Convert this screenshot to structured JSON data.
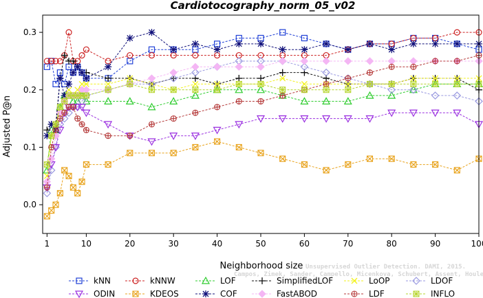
{
  "chart_data": {
    "type": "line",
    "title": "Cardiotocography_norm_05_v02",
    "xlabel": "Neighborhood size",
    "ylabel": "Adjusted P@n",
    "xlim": [
      0,
      100
    ],
    "ylim": [
      -0.05,
      0.33
    ],
    "xticks": [
      1,
      10,
      20,
      30,
      40,
      50,
      60,
      70,
      80,
      90,
      100
    ],
    "yticks": [
      0.0,
      0.1,
      0.2,
      0.3
    ],
    "ytick_labels": [
      "0.0",
      "0.1",
      "0.2",
      "0.3"
    ],
    "grid": false,
    "legend_position": "bottom",
    "x": [
      1,
      2,
      3,
      4,
      5,
      6,
      7,
      8,
      9,
      10,
      15,
      20,
      25,
      30,
      35,
      40,
      45,
      50,
      55,
      60,
      65,
      70,
      75,
      80,
      85,
      90,
      95,
      100
    ],
    "series": [
      {
        "name": "kNN",
        "color": "#1f3fd6",
        "marker": "square",
        "values": [
          0.24,
          0.25,
          0.21,
          0.23,
          0.21,
          0.24,
          0.23,
          0.24,
          0.23,
          0.22,
          0.22,
          0.25,
          0.27,
          0.27,
          0.27,
          0.28,
          0.29,
          0.29,
          0.3,
          0.29,
          0.28,
          0.27,
          0.28,
          0.28,
          0.29,
          0.29,
          0.28,
          0.27
        ]
      },
      {
        "name": "kNNW",
        "color": "#cc2222",
        "marker": "circle",
        "values": [
          0.25,
          0.25,
          0.25,
          0.25,
          0.26,
          0.3,
          0.25,
          0.25,
          0.26,
          0.27,
          0.25,
          0.26,
          0.26,
          0.26,
          0.26,
          0.26,
          0.26,
          0.26,
          0.26,
          0.26,
          0.26,
          0.27,
          0.28,
          0.28,
          0.29,
          0.29,
          0.3,
          0.3
        ]
      },
      {
        "name": "LOF",
        "color": "#2ecc2e",
        "marker": "triangle-up",
        "values": [
          0.06,
          0.13,
          0.13,
          0.17,
          0.19,
          0.19,
          0.18,
          0.18,
          0.19,
          0.18,
          0.18,
          0.18,
          0.17,
          0.18,
          0.19,
          0.2,
          0.2,
          0.2,
          0.19,
          0.18,
          0.18,
          0.18,
          0.19,
          0.19,
          0.2,
          0.21,
          0.21,
          0.21
        ]
      },
      {
        "name": "SimplifiedLOF",
        "color": "#111111",
        "marker": "plus",
        "values": [
          0.13,
          0.14,
          0.14,
          0.22,
          0.26,
          0.25,
          0.25,
          0.24,
          0.23,
          0.23,
          0.22,
          0.22,
          0.21,
          0.22,
          0.22,
          0.21,
          0.22,
          0.22,
          0.23,
          0.23,
          0.22,
          0.21,
          0.21,
          0.21,
          0.22,
          0.22,
          0.22,
          0.2
        ]
      },
      {
        "name": "LoOP",
        "color": "#f2f21a",
        "marker": "cross",
        "values": [
          0.05,
          0.12,
          0.14,
          0.16,
          0.19,
          0.2,
          0.19,
          0.2,
          0.21,
          0.21,
          0.21,
          0.22,
          0.21,
          0.2,
          0.21,
          0.21,
          0.21,
          0.21,
          0.22,
          0.21,
          0.21,
          0.21,
          0.21,
          0.21,
          0.22,
          0.22,
          0.22,
          0.22
        ]
      },
      {
        "name": "LDOF",
        "color": "#9a9ae0",
        "marker": "diamond",
        "values": [
          0.02,
          0.06,
          0.1,
          0.14,
          0.15,
          0.16,
          0.17,
          0.17,
          0.18,
          0.19,
          0.2,
          0.21,
          0.21,
          0.22,
          0.23,
          0.24,
          0.25,
          0.25,
          0.25,
          0.24,
          0.23,
          0.22,
          0.21,
          0.2,
          0.2,
          0.19,
          0.19,
          0.18
        ]
      },
      {
        "name": "ODIN",
        "color": "#9a2fe0",
        "marker": "triangle-down",
        "values": [
          0.03,
          0.07,
          0.1,
          0.13,
          0.16,
          0.17,
          0.17,
          0.17,
          0.17,
          0.16,
          0.14,
          0.12,
          0.11,
          0.12,
          0.12,
          0.13,
          0.14,
          0.15,
          0.15,
          0.15,
          0.15,
          0.15,
          0.15,
          0.16,
          0.16,
          0.16,
          0.16,
          0.14
        ]
      },
      {
        "name": "KDEOS",
        "color": "#e8a21a",
        "marker": "square-x",
        "values": [
          -0.02,
          -0.01,
          0.0,
          0.02,
          0.06,
          0.05,
          0.03,
          0.02,
          0.04,
          0.07,
          0.07,
          0.09,
          0.09,
          0.09,
          0.1,
          0.11,
          0.1,
          0.09,
          0.08,
          0.07,
          0.06,
          0.07,
          0.08,
          0.08,
          0.07,
          0.07,
          0.06,
          0.08
        ]
      },
      {
        "name": "COF",
        "color": "#10107a",
        "marker": "asterisk",
        "values": [
          0.12,
          0.14,
          0.13,
          0.22,
          0.19,
          0.21,
          0.23,
          0.24,
          0.23,
          0.22,
          0.24,
          0.29,
          0.3,
          0.27,
          0.28,
          0.27,
          0.28,
          0.28,
          0.27,
          0.27,
          0.28,
          0.27,
          0.28,
          0.27,
          0.28,
          0.28,
          0.28,
          0.28
        ]
      },
      {
        "name": "FastABOD",
        "color": "#f4b6f4",
        "marker": "diamond-filled",
        "values": [
          0.04,
          0.08,
          0.12,
          0.16,
          0.18,
          0.19,
          0.19,
          0.19,
          0.2,
          0.2,
          0.2,
          0.21,
          0.22,
          0.23,
          0.24,
          0.24,
          0.24,
          0.24,
          0.25,
          0.25,
          0.25,
          0.25,
          0.25,
          0.25,
          0.25,
          0.25,
          0.25,
          0.25
        ]
      },
      {
        "name": "LDF",
        "color": "#b53a3a",
        "marker": "circle-plus",
        "values": [
          0.03,
          0.1,
          0.13,
          0.15,
          0.16,
          0.17,
          0.17,
          0.15,
          0.14,
          0.13,
          0.12,
          0.12,
          0.14,
          0.15,
          0.16,
          0.17,
          0.18,
          0.18,
          0.19,
          0.2,
          0.21,
          0.22,
          0.23,
          0.24,
          0.24,
          0.25,
          0.25,
          0.26
        ]
      },
      {
        "name": "INFLO",
        "color": "#b5d42a",
        "marker": "square-star",
        "values": [
          0.07,
          0.12,
          0.14,
          0.17,
          0.18,
          0.19,
          0.19,
          0.19,
          0.19,
          0.19,
          0.2,
          0.21,
          0.2,
          0.2,
          0.2,
          0.2,
          0.21,
          0.21,
          0.2,
          0.2,
          0.2,
          0.2,
          0.21,
          0.21,
          0.21,
          0.21,
          0.21,
          0.21
        ]
      }
    ]
  },
  "watermark": {
    "line1": "Unsupervised Outlier Detection. DAMI, 2015.",
    "line2": "Campos, Zimek, Sander, Campello, Micenkova, Schubert, Assent, Houle"
  }
}
